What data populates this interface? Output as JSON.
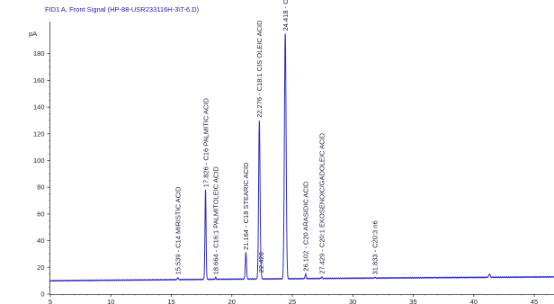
{
  "chart_data": {
    "type": "line",
    "title": "FID1 A, Front Signal (HP-88-USR233116H-3\\T-6.D)",
    "y_unit": "pA",
    "xlim": [
      5,
      47
    ],
    "ylim": [
      0,
      195
    ],
    "x_ticks": [
      "5",
      "10",
      "15",
      "20",
      "25",
      "30",
      "35",
      "40",
      "45"
    ],
    "y_ticks": [
      "0",
      "20",
      "40",
      "60",
      "80",
      "100",
      "120",
      "140",
      "160",
      "180"
    ],
    "grid": false,
    "line_color": "#2a2ac8",
    "baseline": [
      [
        5,
        10.0
      ],
      [
        10,
        10.4
      ],
      [
        15,
        10.8
      ],
      [
        20,
        11.2
      ],
      [
        25,
        11.5
      ],
      [
        30,
        11.9
      ],
      [
        35,
        12.2
      ],
      [
        40,
        12.5
      ],
      [
        47,
        12.9
      ]
    ],
    "peaks": [
      {
        "rt": 15.539,
        "height": 12.5,
        "width": 0.04,
        "label": "15.539 -  C14 MIRISTIC ACID"
      },
      {
        "rt": 17.826,
        "height": 78,
        "width": 0.045,
        "label": "17.826 -  C16 PALMITIC ACID"
      },
      {
        "rt": 18.664,
        "height": 12.5,
        "width": 0.04,
        "label": "18.664 -  C16:1 PALMITOLEIC ACID"
      },
      {
        "rt": 21.164,
        "height": 31,
        "width": 0.05,
        "label": "21.164 -  C18 STEARIC ACID"
      },
      {
        "rt": 22.276,
        "height": 130,
        "width": 0.06,
        "label": "22.276 -  C18:1 CIS OLEIC ACID"
      },
      {
        "rt": 22.428,
        "height": 14,
        "width": 0.04,
        "label": "22.428"
      },
      {
        "rt": 24.418,
        "height": 195,
        "width": 0.07,
        "label": "24.418 -  C18:2 CIS LINOLEIC ACID"
      },
      {
        "rt": 26.102,
        "height": 15,
        "width": 0.045,
        "label": "26.102 -  C20 ARASIDIC ACID"
      },
      {
        "rt": 27.429,
        "height": 13,
        "width": 0.04,
        "label": "27.429 -  C20:1 EKOSENOIC/GADOLEIC ACID"
      },
      {
        "rt": 31.833,
        "height": 12.5,
        "width": 0.04,
        "label": "31.833 -  C20:3 n6"
      },
      {
        "rt": 41.3,
        "height": 15,
        "width": 0.06,
        "label": ""
      }
    ]
  }
}
